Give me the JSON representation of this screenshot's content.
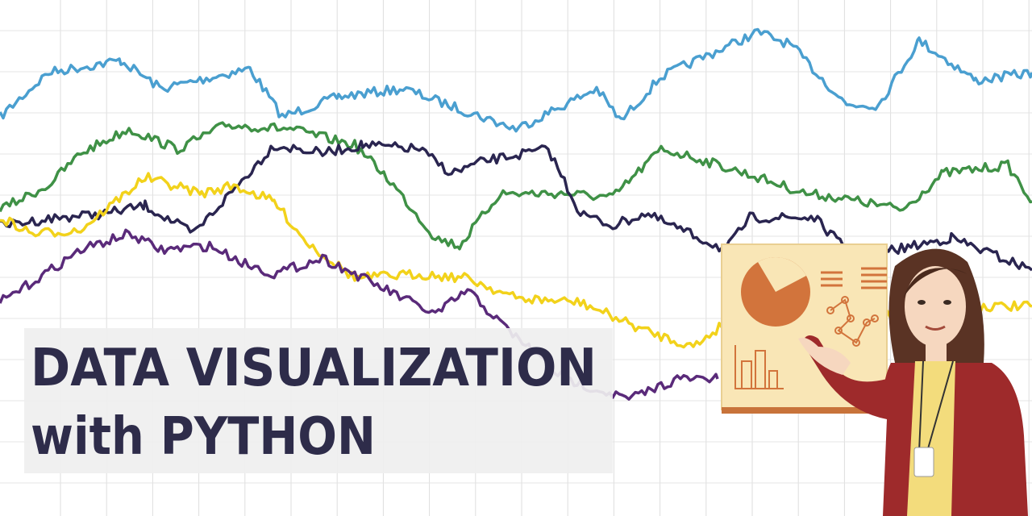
{
  "title": {
    "line1": "DATA VISUALIZATION",
    "line2": "with PYTHON"
  }
}
